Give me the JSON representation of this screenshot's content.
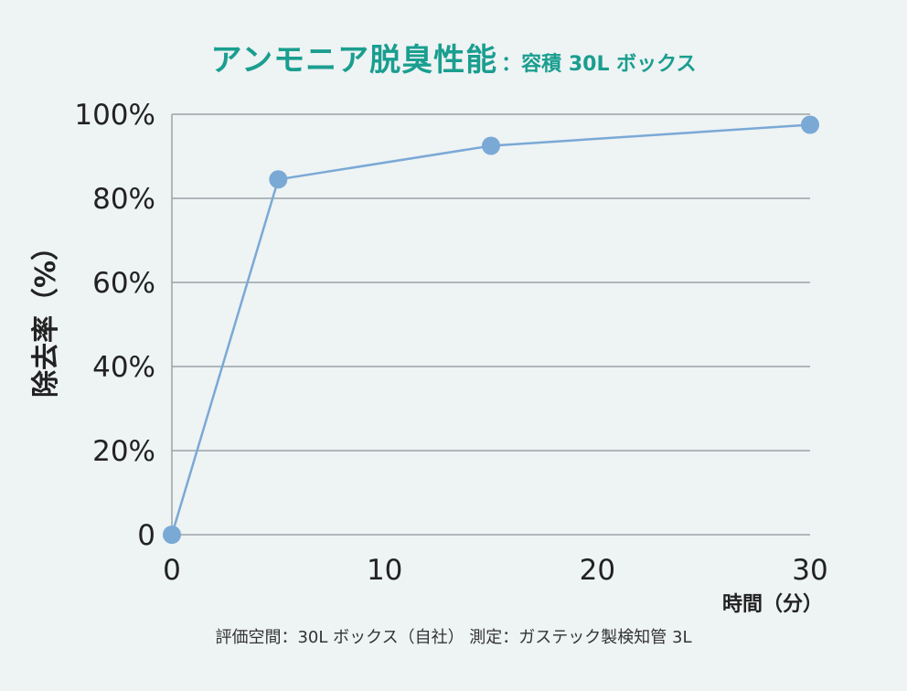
{
  "title": {
    "main": "アンモニア脱臭性能",
    "sub": "：容積 30L ボックス"
  },
  "note": "評価空間：30L ボックス（自社） 測定：ガステック製検知管 3L",
  "colors": {
    "title": "#1a9e8f",
    "series": "#7aa9d6",
    "grid": "#9aa3a6",
    "axis": "#9aa3a6",
    "background": "#eef3f4"
  },
  "chart_data": {
    "type": "line",
    "title": "アンモニア脱臭性能：容積 30L ボックス",
    "xlabel": "時間（分）",
    "ylabel": "除去率（%）",
    "x_ticks": [
      "0",
      "10",
      "20",
      "30"
    ],
    "y_ticks": [
      "0",
      "20%",
      "40%",
      "60%",
      "80%",
      "100%"
    ],
    "x_tick_values": [
      0,
      10,
      20,
      30
    ],
    "y_tick_values": [
      0,
      20,
      40,
      60,
      80,
      100
    ],
    "xlim": [
      0,
      30
    ],
    "ylim": [
      0,
      100
    ],
    "grid": true,
    "series": [
      {
        "name": "除去率",
        "x": [
          0,
          5,
          15,
          30
        ],
        "y": [
          0,
          84.5,
          92.5,
          97.5
        ]
      }
    ]
  }
}
